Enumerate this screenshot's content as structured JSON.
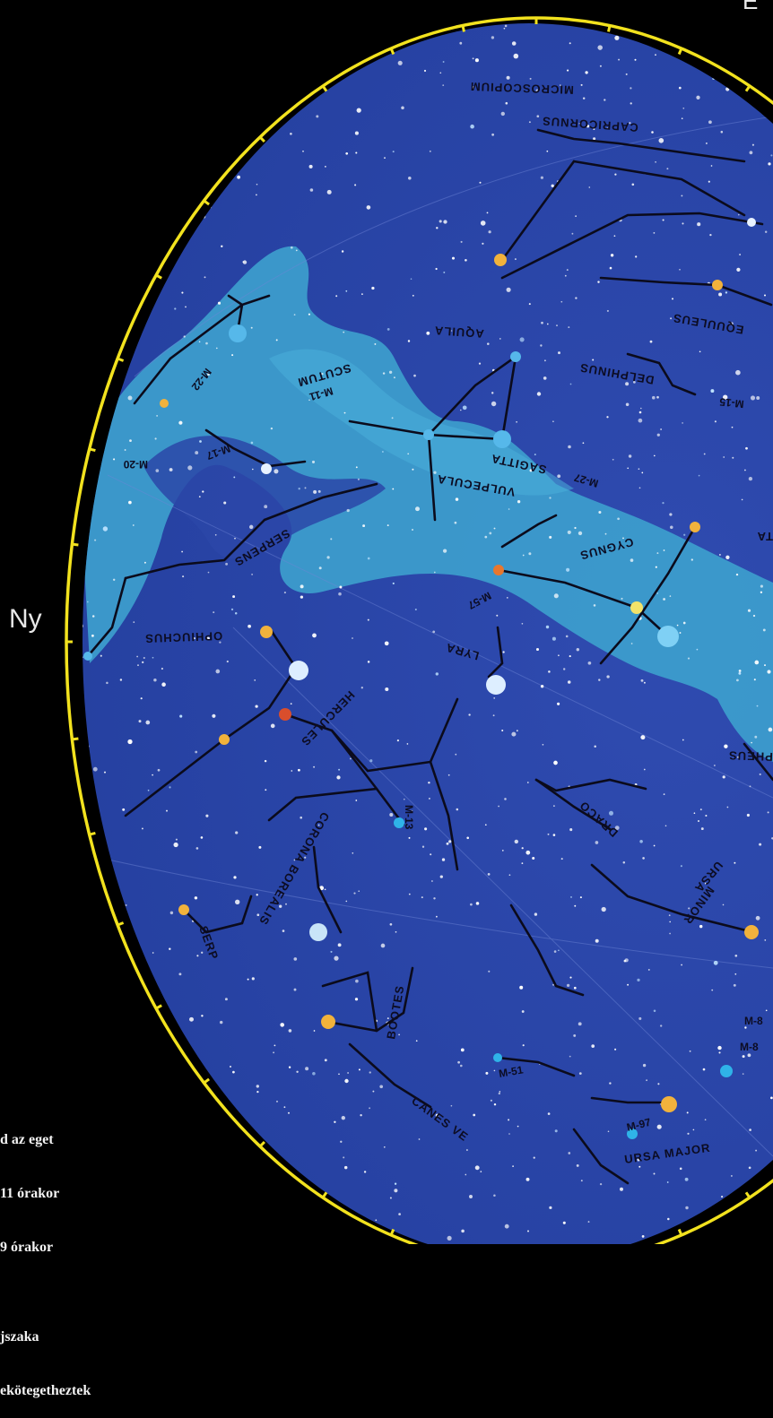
{
  "direction_label": "Ny",
  "top_right_label": "É",
  "constellations": [
    {
      "key": "microscopium",
      "label": "MICROSCOPIUM"
    },
    {
      "key": "capricornus",
      "label": "CAPRICORNUS"
    },
    {
      "key": "aquila",
      "label": "AQUILA"
    },
    {
      "key": "equuleus",
      "label": "EQUULEUS"
    },
    {
      "key": "delphinus",
      "label": "DELPHINUS"
    },
    {
      "key": "scutum",
      "label": "SCUTUM"
    },
    {
      "key": "sagitta",
      "label": "SAGITTA"
    },
    {
      "key": "vulpecula",
      "label": "VULPECULA"
    },
    {
      "key": "cygnus",
      "label": "CYGNUS"
    },
    {
      "key": "serpens",
      "label": "SERPENS"
    },
    {
      "key": "ophiuchus",
      "label": "OPHIUCHUS"
    },
    {
      "key": "lyra",
      "label": "LYRA"
    },
    {
      "key": "hercules",
      "label": "HERCULES"
    },
    {
      "key": "draco",
      "label": "DRACO"
    },
    {
      "key": "ursa_minor_1",
      "label": "URSA"
    },
    {
      "key": "ursa_minor_2",
      "label": "MINOR"
    },
    {
      "key": "cepheus",
      "label": "PHEUS"
    },
    {
      "key": "corona_borealis",
      "label": "CORONA BOREALIS"
    },
    {
      "key": "serpens_caput",
      "label": "SERP"
    },
    {
      "key": "bootes",
      "label": "BOOTES"
    },
    {
      "key": "canes",
      "label": "CANES VE"
    },
    {
      "key": "ursa_major",
      "label": "URSA MAJOR"
    },
    {
      "key": "lacerta",
      "label": "TA"
    }
  ],
  "deep_sky_objects": [
    {
      "key": "m22",
      "label": "M-22"
    },
    {
      "key": "m11",
      "label": "M-11"
    },
    {
      "key": "m20",
      "label": "M-20"
    },
    {
      "key": "m17",
      "label": "M-17"
    },
    {
      "key": "m27",
      "label": "M-27"
    },
    {
      "key": "m15",
      "label": "M-15"
    },
    {
      "key": "m57",
      "label": "M-57"
    },
    {
      "key": "m13",
      "label": "M-13"
    },
    {
      "key": "m51",
      "label": "M-51"
    },
    {
      "key": "m97",
      "label": "M-97"
    },
    {
      "key": "m81",
      "label": "M-8"
    },
    {
      "key": "m82",
      "label": "M-8"
    }
  ],
  "caption_lines": [
    "d az eget",
    "11 órakor",
    "9 órakor",
    "",
    "jszaka",
    "ekötegetheztek"
  ],
  "colors": {
    "background": "#000000",
    "sky": "#2b44a6",
    "milky_way": "#3d9fcf",
    "horizon_ring": "#f2e21e",
    "constellation_lines": "#0a0a1a"
  }
}
